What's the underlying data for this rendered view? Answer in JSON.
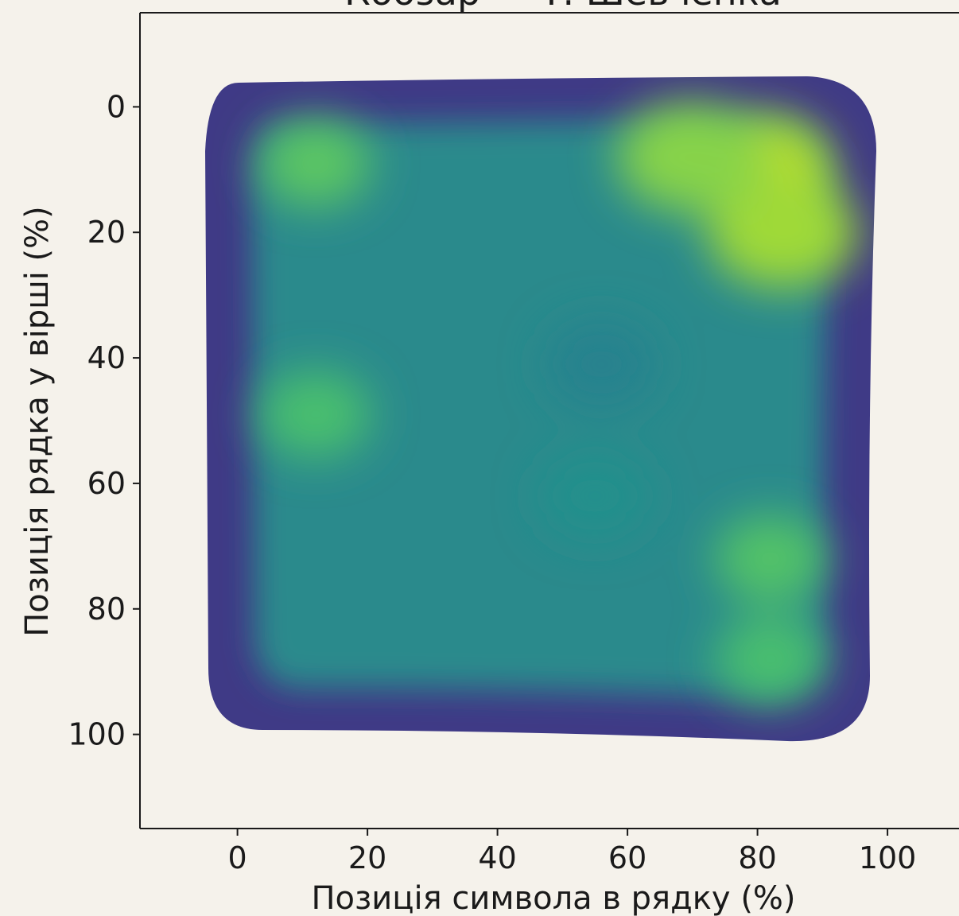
{
  "chart_data": {
    "type": "heatmap",
    "subtype": "kde-density",
    "title": "Кобзар — Т. Шевченка",
    "xlabel": "Позиція символа в рядку (%)",
    "ylabel": "Позиція рядка у вірші (%)",
    "xlim": [
      -15,
      111
    ],
    "ylim": [
      115,
      -15
    ],
    "y_inverted": true,
    "xticks": [
      0,
      20,
      40,
      60,
      80,
      100
    ],
    "yticks": [
      0,
      20,
      40,
      60,
      80,
      100
    ],
    "colormap": "viridis",
    "grid": false,
    "background": "#f5f2eb",
    "density_region": {
      "x_range": [
        -5,
        98
      ],
      "y_range": [
        -4,
        100
      ]
    },
    "hotspots": [
      {
        "x": 80,
        "y": 10,
        "intensity": 1.0
      },
      {
        "x": 84,
        "y": 20,
        "intensity": 0.95
      },
      {
        "x": 70,
        "y": 8,
        "intensity": 0.9
      },
      {
        "x": 12,
        "y": 9,
        "intensity": 0.8
      },
      {
        "x": 12,
        "y": 49,
        "intensity": 0.75
      },
      {
        "x": 82,
        "y": 72,
        "intensity": 0.78
      },
      {
        "x": 82,
        "y": 88,
        "intensity": 0.75
      },
      {
        "x": 56,
        "y": 41,
        "intensity": 0.3
      },
      {
        "x": 55,
        "y": 62,
        "intensity": 0.4
      }
    ]
  }
}
